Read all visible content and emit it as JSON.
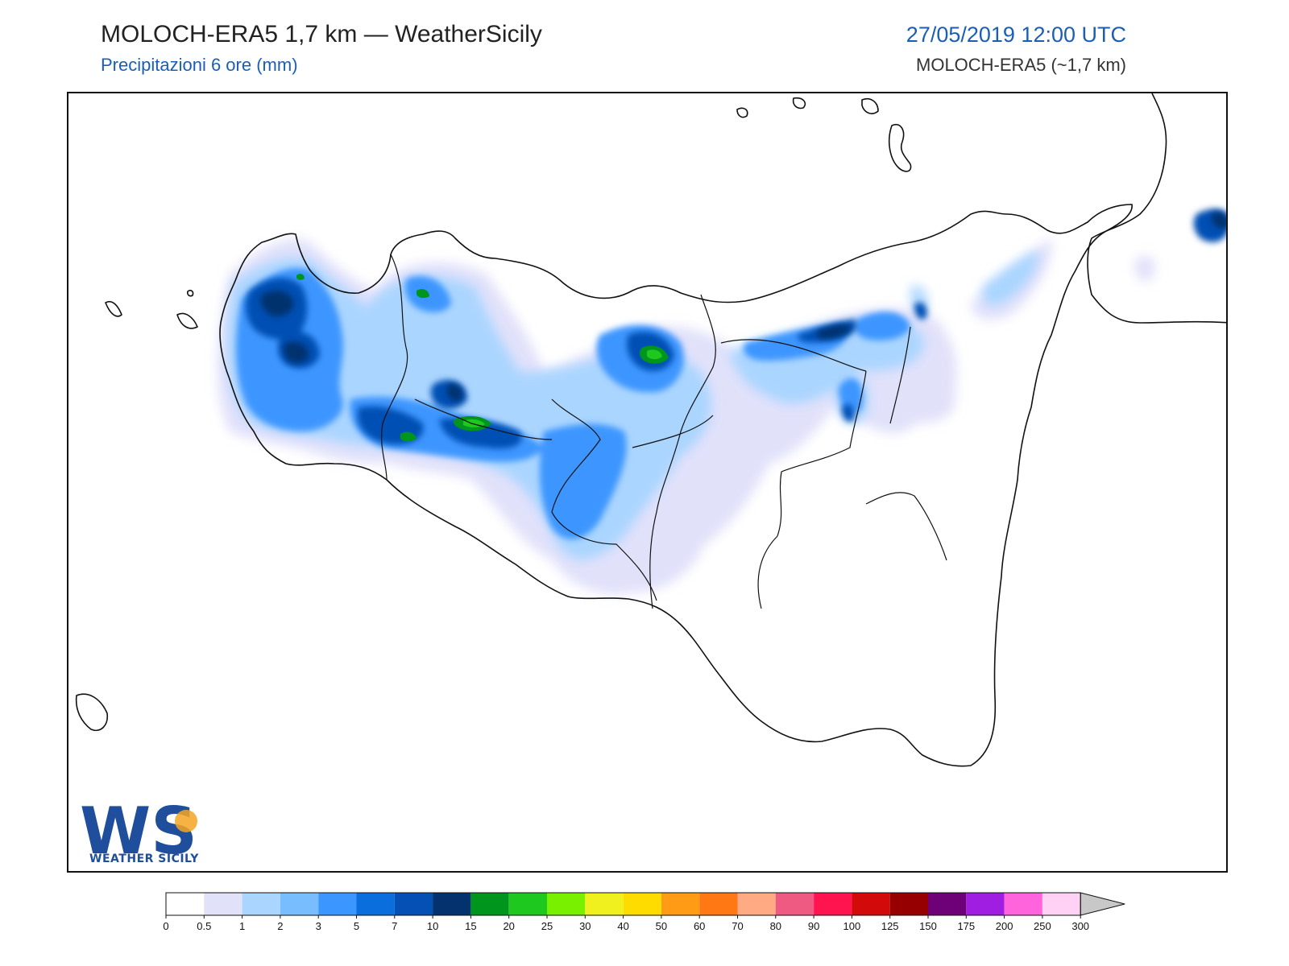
{
  "header": {
    "title": "MOLOCH-ERA5 1,7 km — WeatherSicily",
    "subtitle": "Precipitazioni 6 ore (mm)",
    "datetime": "27/05/2019 12:00 UTC",
    "model": "MOLOCH-ERA5 (~1,7 km)"
  },
  "logo": {
    "letters": "WS",
    "text": "WEATHER SICILY"
  },
  "legend": {
    "colors": [
      "#ffffff",
      "#e1e1fa",
      "#aad5ff",
      "#78beff",
      "#3c96ff",
      "#0a6edc",
      "#0550b4",
      "#03326e",
      "#00961e",
      "#1ec81e",
      "#78f000",
      "#f0f01e",
      "#ffdc00",
      "#ff9b14",
      "#ff7814",
      "#ffaa82",
      "#ee5a82",
      "#ff1450",
      "#d20a0a",
      "#960000",
      "#6e0078",
      "#a01ee1",
      "#ff64dc",
      "#ffd2f5"
    ],
    "ticks": [
      "0",
      "0.5",
      "1",
      "2",
      "3",
      "5",
      "7",
      "10",
      "15",
      "20",
      "25",
      "30",
      "40",
      "50",
      "60",
      "70",
      "80",
      "90",
      "100",
      "125",
      "150",
      "175",
      "200",
      "250",
      "300"
    ],
    "overflow_color": "#c8c8c8"
  }
}
